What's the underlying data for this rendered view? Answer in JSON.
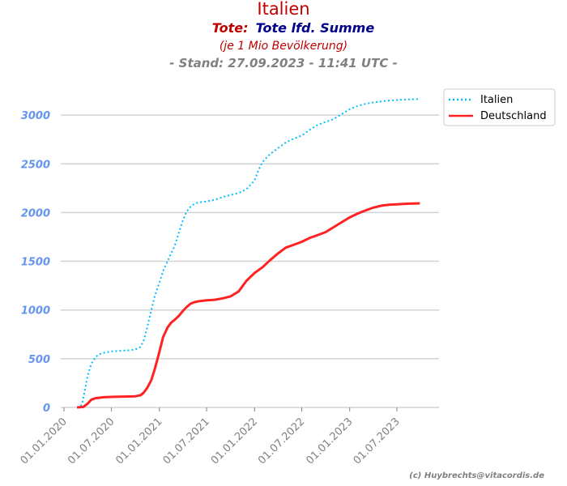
{
  "chart_data": {
    "type": "line",
    "title": "Italien",
    "subtitle_prefix": "Tote:",
    "subtitle_main": "Tote lfd. Summe",
    "note": "(je 1 Mio Bevölkerung)",
    "stand": "- Stand: 27.09.2023 - 11:41 UTC -",
    "credit": "(c) Huybrechts@vitacordis.de",
    "ylim": [
      0,
      3300
    ],
    "yticks": [
      0,
      500,
      1000,
      1500,
      2000,
      2500,
      3000
    ],
    "xticks": [
      "01.01.2020",
      "01.07.2020",
      "01.01.2021",
      "01.07.2021",
      "01.01.2022",
      "01.07.2022",
      "01.01.2023",
      "01.07.2023"
    ],
    "grid": true,
    "legend_position": "top-right",
    "series": [
      {
        "name": "Italien",
        "color": "#00bfff",
        "style": "dotted",
        "points": [
          [
            "2020-02-20",
            0
          ],
          [
            "2020-03-01",
            5
          ],
          [
            "2020-03-10",
            30
          ],
          [
            "2020-03-20",
            160
          ],
          [
            "2020-04-01",
            330
          ],
          [
            "2020-04-15",
            450
          ],
          [
            "2020-05-01",
            515
          ],
          [
            "2020-05-15",
            545
          ],
          [
            "2020-06-01",
            560
          ],
          [
            "2020-07-01",
            575
          ],
          [
            "2020-08-01",
            580
          ],
          [
            "2020-09-01",
            585
          ],
          [
            "2020-10-01",
            595
          ],
          [
            "2020-10-20",
            620
          ],
          [
            "2020-11-01",
            680
          ],
          [
            "2020-11-15",
            820
          ],
          [
            "2020-12-01",
            1000
          ],
          [
            "2020-12-15",
            1150
          ],
          [
            "2021-01-01",
            1280
          ],
          [
            "2021-01-15",
            1400
          ],
          [
            "2021-02-01",
            1500
          ],
          [
            "2021-02-15",
            1580
          ],
          [
            "2021-03-01",
            1660
          ],
          [
            "2021-03-15",
            1780
          ],
          [
            "2021-04-01",
            1920
          ],
          [
            "2021-04-15",
            2010
          ],
          [
            "2021-05-01",
            2060
          ],
          [
            "2021-05-15",
            2090
          ],
          [
            "2021-06-01",
            2105
          ],
          [
            "2021-07-01",
            2115
          ],
          [
            "2021-08-01",
            2130
          ],
          [
            "2021-09-01",
            2160
          ],
          [
            "2021-10-01",
            2180
          ],
          [
            "2021-11-01",
            2200
          ],
          [
            "2021-12-01",
            2240
          ],
          [
            "2022-01-01",
            2330
          ],
          [
            "2022-01-15",
            2430
          ],
          [
            "2022-02-01",
            2520
          ],
          [
            "2022-03-01",
            2600
          ],
          [
            "2022-04-01",
            2660
          ],
          [
            "2022-05-01",
            2720
          ],
          [
            "2022-06-01",
            2760
          ],
          [
            "2022-07-01",
            2790
          ],
          [
            "2022-08-01",
            2850
          ],
          [
            "2022-09-01",
            2900
          ],
          [
            "2022-10-01",
            2930
          ],
          [
            "2022-11-01",
            2960
          ],
          [
            "2022-12-01",
            3010
          ],
          [
            "2023-01-01",
            3060
          ],
          [
            "2023-02-01",
            3095
          ],
          [
            "2023-03-01",
            3115
          ],
          [
            "2023-04-01",
            3130
          ],
          [
            "2023-05-01",
            3140
          ],
          [
            "2023-06-01",
            3150
          ],
          [
            "2023-07-01",
            3155
          ],
          [
            "2023-08-01",
            3160
          ],
          [
            "2023-09-27",
            3165
          ]
        ]
      },
      {
        "name": "Deutschland",
        "color": "#ff2222",
        "style": "solid",
        "points": [
          [
            "2020-02-20",
            0
          ],
          [
            "2020-03-15",
            5
          ],
          [
            "2020-04-01",
            40
          ],
          [
            "2020-04-15",
            80
          ],
          [
            "2020-05-01",
            95
          ],
          [
            "2020-06-01",
            105
          ],
          [
            "2020-07-01",
            108
          ],
          [
            "2020-08-01",
            110
          ],
          [
            "2020-09-01",
            112
          ],
          [
            "2020-10-01",
            115
          ],
          [
            "2020-10-20",
            125
          ],
          [
            "2020-11-01",
            150
          ],
          [
            "2020-11-15",
            200
          ],
          [
            "2020-12-01",
            280
          ],
          [
            "2020-12-15",
            400
          ],
          [
            "2021-01-01",
            570
          ],
          [
            "2021-01-15",
            720
          ],
          [
            "2021-02-01",
            820
          ],
          [
            "2021-02-15",
            870
          ],
          [
            "2021-03-01",
            900
          ],
          [
            "2021-03-15",
            935
          ],
          [
            "2021-04-01",
            990
          ],
          [
            "2021-04-15",
            1030
          ],
          [
            "2021-05-01",
            1065
          ],
          [
            "2021-05-15",
            1080
          ],
          [
            "2021-06-01",
            1090
          ],
          [
            "2021-07-01",
            1100
          ],
          [
            "2021-08-01",
            1105
          ],
          [
            "2021-09-01",
            1120
          ],
          [
            "2021-10-01",
            1140
          ],
          [
            "2021-11-01",
            1190
          ],
          [
            "2021-12-01",
            1300
          ],
          [
            "2022-01-01",
            1380
          ],
          [
            "2022-02-01",
            1440
          ],
          [
            "2022-03-01",
            1510
          ],
          [
            "2022-04-01",
            1580
          ],
          [
            "2022-05-01",
            1640
          ],
          [
            "2022-06-01",
            1670
          ],
          [
            "2022-07-01",
            1700
          ],
          [
            "2022-08-01",
            1740
          ],
          [
            "2022-09-01",
            1770
          ],
          [
            "2022-10-01",
            1800
          ],
          [
            "2022-11-01",
            1850
          ],
          [
            "2022-12-01",
            1900
          ],
          [
            "2023-01-01",
            1950
          ],
          [
            "2023-02-01",
            1990
          ],
          [
            "2023-03-01",
            2020
          ],
          [
            "2023-04-01",
            2050
          ],
          [
            "2023-05-01",
            2070
          ],
          [
            "2023-06-01",
            2080
          ],
          [
            "2023-07-01",
            2085
          ],
          [
            "2023-08-01",
            2090
          ],
          [
            "2023-09-27",
            2095
          ]
        ]
      }
    ]
  }
}
